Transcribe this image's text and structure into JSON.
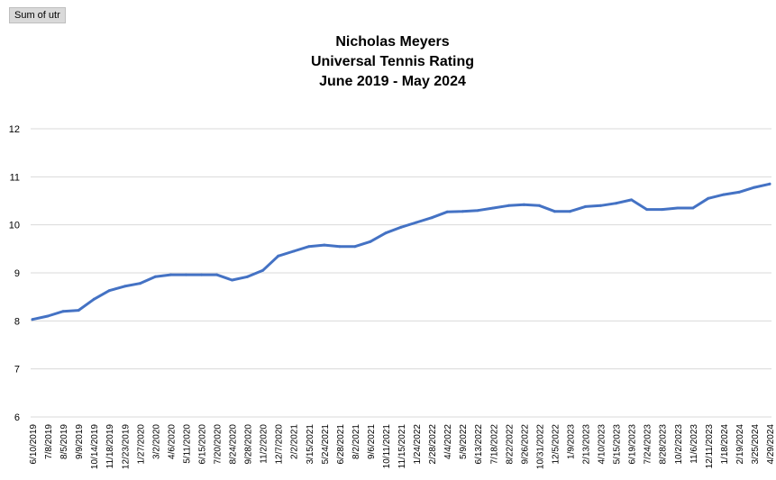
{
  "field_button": {
    "label": "Sum of utr"
  },
  "chart_data": {
    "type": "line",
    "title_lines": [
      "Nicholas Meyers",
      "Universal Tennis Rating",
      "June 2019 - May 2024"
    ],
    "xlabel": "",
    "ylabel": "",
    "ylim": [
      6,
      12
    ],
    "yticks": [
      "6",
      "7",
      "8",
      "9",
      "10",
      "11",
      "12"
    ],
    "grid": true,
    "legend": "none",
    "color": "#4472C4",
    "categories": [
      "6/10/2019",
      "7/8/2019",
      "8/5/2019",
      "9/9/2019",
      "10/14/2019",
      "11/18/2019",
      "12/23/2019",
      "1/27/2020",
      "3/2/2020",
      "4/6/2020",
      "5/11/2020",
      "6/15/2020",
      "7/20/2020",
      "8/24/2020",
      "9/28/2020",
      "11/2/2020",
      "12/7/2020",
      "2/2/2021",
      "3/15/2021",
      "5/24/2021",
      "6/28/2021",
      "8/2/2021",
      "9/6/2021",
      "10/11/2021",
      "11/15/2021",
      "1/24/2022",
      "2/28/2022",
      "4/4/2022",
      "5/9/2022",
      "6/13/2022",
      "7/18/2022",
      "8/22/2022",
      "9/26/2022",
      "10/31/2022",
      "12/5/2022",
      "1/9/2023",
      "2/13/2023",
      "4/10/2023",
      "5/15/2023",
      "6/19/2023",
      "7/24/2023",
      "8/28/2023",
      "10/2/2023",
      "11/6/2023",
      "12/11/2023",
      "1/18/2024",
      "2/19/2024",
      "3/25/2024",
      "4/29/2024"
    ],
    "values": [
      8.03,
      8.1,
      8.2,
      8.22,
      8.45,
      8.63,
      8.72,
      8.78,
      8.92,
      8.96,
      8.96,
      8.96,
      8.96,
      8.85,
      8.92,
      9.05,
      9.35,
      9.45,
      9.55,
      9.58,
      9.55,
      9.55,
      9.65,
      9.83,
      9.95,
      10.05,
      10.15,
      10.27,
      10.28,
      10.3,
      10.35,
      10.4,
      10.42,
      10.4,
      10.28,
      10.28,
      10.38,
      10.4,
      10.45,
      10.52,
      10.32,
      10.32,
      10.35,
      10.35,
      10.55,
      10.63,
      10.68,
      10.78,
      10.85
    ]
  }
}
